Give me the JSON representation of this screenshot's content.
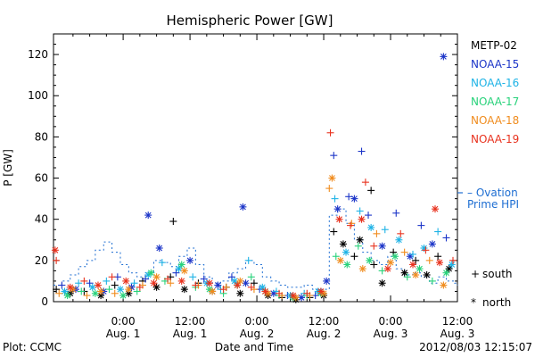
{
  "colors": {
    "METP-02": "#000000",
    "NOAA-15": "#1c35c8",
    "NOAA-16": "#1eb3e6",
    "NOAA-17": "#27d27a",
    "NOAA-18": "#f08c1e",
    "NOAA-19": "#e8321e",
    "ovation": "#1e6ed2"
  },
  "footer": {
    "plot_credit": "Plot: CCMC",
    "timestamp": "2012/08/03 12:15:07"
  },
  "legend": {
    "satellites": [
      "METP-02",
      "NOAA-15",
      "NOAA-16",
      "NOAA-17",
      "NOAA-18",
      "NOAA-19"
    ],
    "ovation_line1": "– Ovation",
    "ovation_line2": "Prime HPI",
    "south_symbol": "+",
    "south_label": "south",
    "north_symbol": "*",
    "north_label": "north"
  },
  "chart_data": {
    "type": "scatter",
    "title": "Hemispheric Power [GW]",
    "xlabel": "Date and Time",
    "ylabel": "P [GW]",
    "ylim": [
      0,
      130
    ],
    "y_ticks": [
      0,
      20,
      40,
      60,
      80,
      100,
      120
    ],
    "xlim_hours": [
      -12.5,
      60
    ],
    "x_ticks": [
      {
        "hour": 0,
        "time": "0:00",
        "date": "Aug. 1"
      },
      {
        "hour": 12,
        "time": "12:00",
        "date": "Aug. 1"
      },
      {
        "hour": 24,
        "time": "0:00",
        "date": "Aug. 2"
      },
      {
        "hour": 36,
        "time": "12:00",
        "date": "Aug. 2"
      },
      {
        "hour": 48,
        "time": "0:00",
        "date": "Aug. 3"
      },
      {
        "hour": 60,
        "time": "12:00",
        "date": "Aug. 3"
      }
    ],
    "ovation_prime_hpi": [
      [
        -12.5,
        8
      ],
      [
        -11,
        10
      ],
      [
        -9.5,
        13
      ],
      [
        -8,
        17
      ],
      [
        -6.5,
        20
      ],
      [
        -5,
        25
      ],
      [
        -3.5,
        29
      ],
      [
        -2,
        24
      ],
      [
        -0.5,
        18
      ],
      [
        1,
        14
      ],
      [
        2.5,
        12
      ],
      [
        4,
        14
      ],
      [
        5.5,
        20
      ],
      [
        7,
        19
      ],
      [
        8.5,
        17
      ],
      [
        10,
        22
      ],
      [
        11.5,
        26
      ],
      [
        13,
        18
      ],
      [
        14.5,
        12
      ],
      [
        16,
        9
      ],
      [
        17.5,
        10
      ],
      [
        19,
        14
      ],
      [
        20.5,
        16
      ],
      [
        22,
        20
      ],
      [
        23.5,
        18
      ],
      [
        25,
        12
      ],
      [
        26.5,
        10
      ],
      [
        28,
        8
      ],
      [
        29.5,
        7
      ],
      [
        31,
        7
      ],
      [
        32.5,
        8
      ],
      [
        34,
        6
      ],
      [
        35.5,
        6
      ],
      [
        37,
        42
      ],
      [
        38.5,
        45
      ],
      [
        40,
        38
      ],
      [
        41.5,
        30
      ],
      [
        43,
        24
      ],
      [
        44.5,
        20
      ],
      [
        46,
        18
      ],
      [
        47.5,
        22
      ],
      [
        49,
        16
      ],
      [
        50.5,
        13
      ],
      [
        52,
        14
      ],
      [
        53.5,
        12
      ],
      [
        55,
        9
      ],
      [
        56.5,
        12
      ],
      [
        58,
        10
      ],
      [
        59.5,
        9
      ],
      [
        61,
        8
      ]
    ],
    "highlights": [
      {
        "satellite": "NOAA-15",
        "hemisphere": "north",
        "x": 57.5,
        "y": 119
      },
      {
        "satellite": "NOAA-19",
        "hemisphere": "south",
        "x": 37.2,
        "y": 82
      },
      {
        "satellite": "NOAA-15",
        "hemisphere": "south",
        "x": 42.8,
        "y": 73
      },
      {
        "satellite": "NOAA-15",
        "hemisphere": "south",
        "x": 37.8,
        "y": 71
      },
      {
        "satellite": "NOAA-18",
        "hemisphere": "north",
        "x": 37.5,
        "y": 60
      },
      {
        "satellite": "NOAA-19",
        "hemisphere": "south",
        "x": 43.5,
        "y": 58
      },
      {
        "satellite": "NOAA-15",
        "hemisphere": "north",
        "x": 21.5,
        "y": 46
      },
      {
        "satellite": "NOAA-15",
        "hemisphere": "north",
        "x": 4.5,
        "y": 42
      },
      {
        "satellite": "METP-02",
        "hemisphere": "south",
        "x": 9.0,
        "y": 39
      },
      {
        "satellite": "NOAA-19",
        "hemisphere": "north",
        "x": -12.2,
        "y": 25
      },
      {
        "satellite": "NOAA-19",
        "hemisphere": "north",
        "x": 56.0,
        "y": 45
      },
      {
        "satellite": "METP-02",
        "hemisphere": "south",
        "x": 44.5,
        "y": 54
      }
    ],
    "series": [
      {
        "name": "METP-02",
        "points": [
          [
            -12,
            6,
            "s"
          ],
          [
            -9.5,
            4,
            "n"
          ],
          [
            -7,
            5,
            "s"
          ],
          [
            -4,
            3,
            "n"
          ],
          [
            -1.5,
            8,
            "s"
          ],
          [
            1,
            4,
            "n"
          ],
          [
            3.5,
            10,
            "s"
          ],
          [
            6,
            7,
            "n"
          ],
          [
            8.5,
            12,
            "s"
          ],
          [
            11,
            6,
            "n"
          ],
          [
            13.5,
            9,
            "s"
          ],
          [
            16,
            5,
            "n"
          ],
          [
            18.5,
            7,
            "s"
          ],
          [
            21,
            4,
            "n"
          ],
          [
            23.5,
            9,
            "s"
          ],
          [
            26,
            3,
            "n"
          ],
          [
            28.5,
            2,
            "s"
          ],
          [
            31,
            1,
            "n"
          ],
          [
            33.5,
            2,
            "s"
          ],
          [
            36,
            3,
            "n"
          ],
          [
            37.8,
            34,
            "s"
          ],
          [
            39.5,
            28,
            "n"
          ],
          [
            41.5,
            22,
            "s"
          ],
          [
            42.5,
            30,
            "n"
          ],
          [
            45,
            18,
            "s"
          ],
          [
            46.5,
            9,
            "n"
          ],
          [
            48.5,
            24,
            "s"
          ],
          [
            50.5,
            14,
            "n"
          ],
          [
            52.5,
            20,
            "s"
          ],
          [
            54.5,
            13,
            "n"
          ],
          [
            56.5,
            22,
            "s"
          ],
          [
            58.5,
            16,
            "n"
          ]
        ]
      },
      {
        "name": "NOAA-15",
        "points": [
          [
            -11,
            8,
            "s"
          ],
          [
            -8.5,
            6,
            "n"
          ],
          [
            -6,
            9,
            "s"
          ],
          [
            -3.5,
            5,
            "n"
          ],
          [
            -1,
            12,
            "s"
          ],
          [
            1.5,
            7,
            "n"
          ],
          [
            4,
            11,
            "s"
          ],
          [
            6.5,
            26,
            "n"
          ],
          [
            9.5,
            14,
            "s"
          ],
          [
            12,
            20,
            "n"
          ],
          [
            14.5,
            11,
            "s"
          ],
          [
            17,
            8,
            "n"
          ],
          [
            19.5,
            12,
            "s"
          ],
          [
            22,
            9,
            "n"
          ],
          [
            24.5,
            6,
            "s"
          ],
          [
            27,
            4,
            "n"
          ],
          [
            29.5,
            3,
            "s"
          ],
          [
            32,
            2,
            "n"
          ],
          [
            34.5,
            3,
            "s"
          ],
          [
            36.5,
            10,
            "n"
          ],
          [
            38.5,
            45,
            "n"
          ],
          [
            40.5,
            51,
            "s"
          ],
          [
            41.5,
            50,
            "n"
          ],
          [
            44,
            42,
            "s"
          ],
          [
            46.5,
            27,
            "n"
          ],
          [
            49,
            43,
            "s"
          ],
          [
            51.5,
            22,
            "n"
          ],
          [
            53.5,
            37,
            "s"
          ],
          [
            55.5,
            28,
            "n"
          ],
          [
            58,
            31,
            "s"
          ]
        ]
      },
      {
        "name": "NOAA-16",
        "points": [
          [
            -10.5,
            5,
            "n"
          ],
          [
            -8,
            9,
            "s"
          ],
          [
            -5.5,
            7,
            "n"
          ],
          [
            -3,
            10,
            "s"
          ],
          [
            -0.5,
            6,
            "n"
          ],
          [
            2,
            9,
            "s"
          ],
          [
            4.5,
            13,
            "n"
          ],
          [
            7,
            19,
            "s"
          ],
          [
            10,
            16,
            "n"
          ],
          [
            12.5,
            12,
            "s"
          ],
          [
            15,
            9,
            "n"
          ],
          [
            17.5,
            6,
            "s"
          ],
          [
            20,
            10,
            "n"
          ],
          [
            22.5,
            20,
            "s"
          ],
          [
            25,
            7,
            "n"
          ],
          [
            27.5,
            5,
            "s"
          ],
          [
            30,
            3,
            "n"
          ],
          [
            32.5,
            4,
            "s"
          ],
          [
            35,
            5,
            "n"
          ],
          [
            38,
            50,
            "s"
          ],
          [
            40,
            24,
            "n"
          ],
          [
            42.5,
            44,
            "s"
          ],
          [
            44.5,
            36,
            "n"
          ],
          [
            47,
            35,
            "s"
          ],
          [
            49.5,
            30,
            "n"
          ],
          [
            52,
            23,
            "s"
          ],
          [
            54,
            26,
            "n"
          ],
          [
            56.5,
            34,
            "s"
          ],
          [
            59,
            18,
            "n"
          ]
        ]
      },
      {
        "name": "NOAA-17",
        "points": [
          [
            -10,
            3,
            "n"
          ],
          [
            -7.5,
            5,
            "s"
          ],
          [
            -5,
            4,
            "n"
          ],
          [
            -2.5,
            6,
            "s"
          ],
          [
            0,
            3,
            "n"
          ],
          [
            2.5,
            5,
            "s"
          ],
          [
            5,
            14,
            "n"
          ],
          [
            7.5,
            10,
            "s"
          ],
          [
            10.5,
            18,
            "n"
          ],
          [
            13,
            7,
            "s"
          ],
          [
            15.5,
            6,
            "n"
          ],
          [
            18,
            4,
            "s"
          ],
          [
            20.5,
            8,
            "n"
          ],
          [
            23,
            12,
            "s"
          ],
          [
            25.5,
            5,
            "n"
          ],
          [
            28,
            3,
            "s"
          ],
          [
            30.5,
            2,
            "n"
          ],
          [
            33,
            3,
            "s"
          ],
          [
            35.5,
            4,
            "n"
          ],
          [
            38.2,
            22,
            "s"
          ],
          [
            40.2,
            18,
            "n"
          ],
          [
            42.2,
            27,
            "s"
          ],
          [
            44.2,
            20,
            "n"
          ],
          [
            46.5,
            15,
            "s"
          ],
          [
            48.8,
            22,
            "n"
          ],
          [
            51,
            12,
            "s"
          ],
          [
            53.2,
            16,
            "n"
          ],
          [
            55.5,
            10,
            "s"
          ],
          [
            58,
            14,
            "n"
          ]
        ]
      },
      {
        "name": "NOAA-18",
        "points": [
          [
            -11.5,
            4,
            "s"
          ],
          [
            -9,
            6,
            "n"
          ],
          [
            -6.5,
            3,
            "s"
          ],
          [
            -4,
            5,
            "n"
          ],
          [
            -1.5,
            4,
            "s"
          ],
          [
            1,
            6,
            "n"
          ],
          [
            3.5,
            8,
            "s"
          ],
          [
            6,
            12,
            "n"
          ],
          [
            8.5,
            9,
            "s"
          ],
          [
            11,
            15,
            "n"
          ],
          [
            13.5,
            8,
            "s"
          ],
          [
            16,
            5,
            "n"
          ],
          [
            18.5,
            7,
            "s"
          ],
          [
            21,
            10,
            "n"
          ],
          [
            23.5,
            6,
            "s"
          ],
          [
            26,
            4,
            "n"
          ],
          [
            28.5,
            3,
            "s"
          ],
          [
            31,
            2,
            "n"
          ],
          [
            33.5,
            3,
            "s"
          ],
          [
            36,
            4,
            "n"
          ],
          [
            37,
            55,
            "s"
          ],
          [
            39,
            20,
            "n"
          ],
          [
            41,
            38,
            "s"
          ],
          [
            43,
            16,
            "n"
          ],
          [
            45.5,
            33,
            "s"
          ],
          [
            48,
            19,
            "n"
          ],
          [
            50.5,
            24,
            "s"
          ],
          [
            52.5,
            13,
            "n"
          ],
          [
            55,
            20,
            "s"
          ],
          [
            57.5,
            8,
            "n"
          ]
        ]
      },
      {
        "name": "NOAA-19",
        "points": [
          [
            -12,
            20,
            "s"
          ],
          [
            -9.5,
            7,
            "n"
          ],
          [
            -7,
            10,
            "s"
          ],
          [
            -4.5,
            8,
            "n"
          ],
          [
            -2,
            12,
            "s"
          ],
          [
            0.5,
            10,
            "n"
          ],
          [
            3,
            7,
            "s"
          ],
          [
            5.5,
            9,
            "n"
          ],
          [
            8,
            11,
            "s"
          ],
          [
            10.5,
            10,
            "n"
          ],
          [
            13,
            8,
            "s"
          ],
          [
            15.5,
            9,
            "n"
          ],
          [
            18,
            6,
            "s"
          ],
          [
            20.5,
            8,
            "n"
          ],
          [
            23,
            7,
            "s"
          ],
          [
            25.5,
            5,
            "n"
          ],
          [
            28,
            4,
            "s"
          ],
          [
            30.5,
            3,
            "n"
          ],
          [
            33,
            4,
            "s"
          ],
          [
            35.5,
            5,
            "n"
          ],
          [
            38.8,
            40,
            "n"
          ],
          [
            40.8,
            37,
            "s"
          ],
          [
            42.8,
            40,
            "n"
          ],
          [
            45,
            27,
            "s"
          ],
          [
            47.5,
            16,
            "n"
          ],
          [
            49.8,
            33,
            "s"
          ],
          [
            52,
            18,
            "n"
          ],
          [
            54.3,
            25,
            "s"
          ],
          [
            56.8,
            19,
            "n"
          ],
          [
            59.2,
            20,
            "s"
          ]
        ]
      }
    ]
  }
}
